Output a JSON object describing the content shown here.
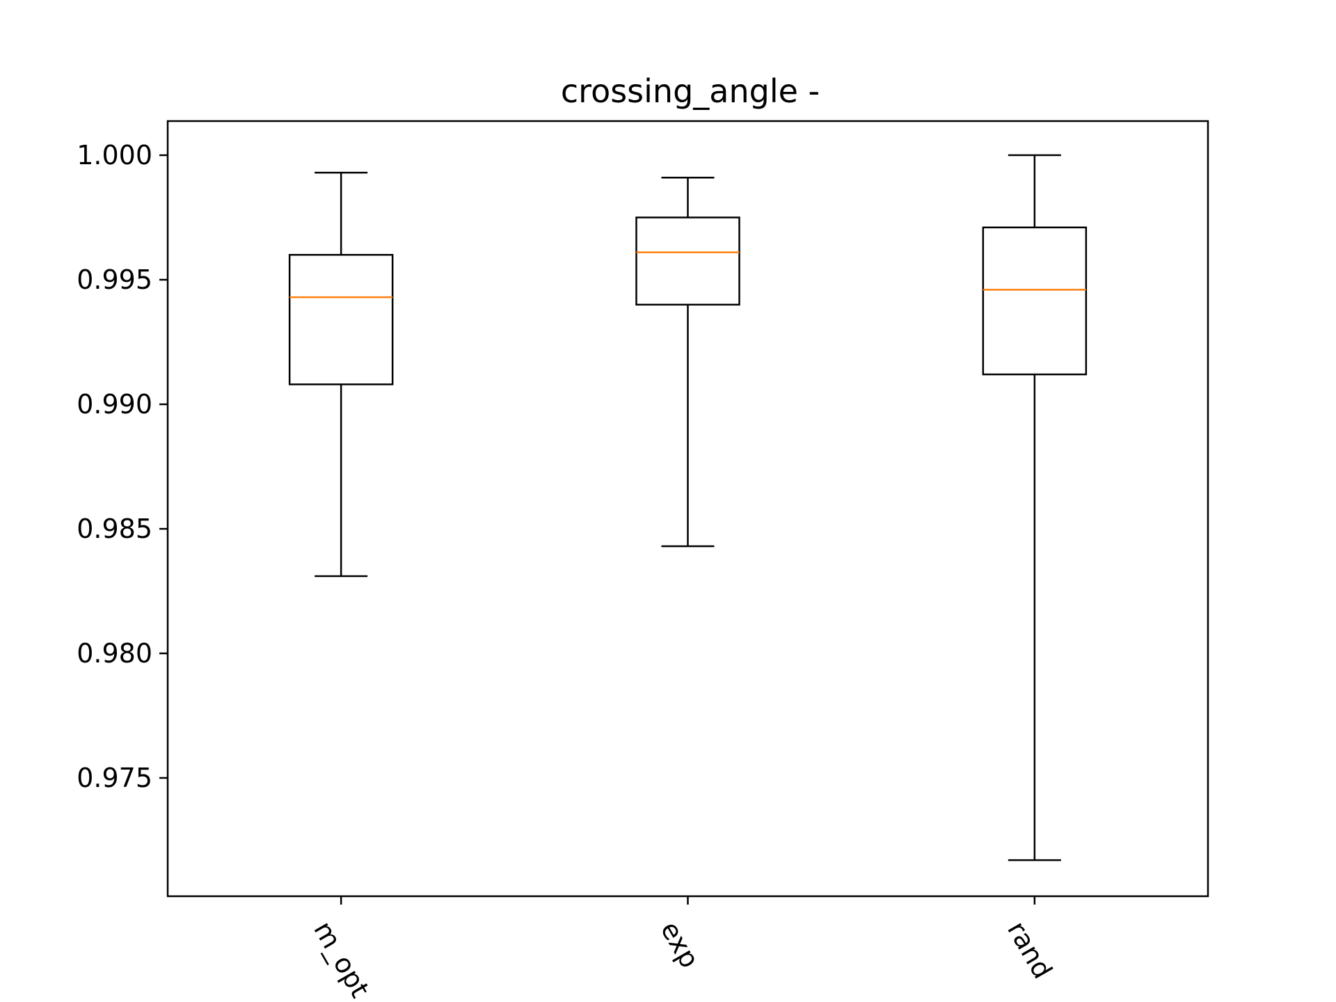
{
  "chart_data": {
    "type": "boxplot",
    "title": "crossing_angle -",
    "xlabel": "",
    "ylabel": "",
    "categories": [
      "m_opt",
      "exp",
      "rand"
    ],
    "boxes": [
      {
        "label": "m_opt",
        "whisker_low": 0.9831,
        "q1": 0.9908,
        "median": 0.9943,
        "q3": 0.996,
        "whisker_high": 0.9993
      },
      {
        "label": "exp",
        "whisker_low": 0.9843,
        "q1": 0.994,
        "median": 0.9961,
        "q3": 0.9975,
        "whisker_high": 0.9991
      },
      {
        "label": "rand",
        "whisker_low": 0.9717,
        "q1": 0.9912,
        "median": 0.9946,
        "q3": 0.9971,
        "whisker_high": 1.0
      }
    ],
    "yticks": [
      0.975,
      0.98,
      0.985,
      0.99,
      0.995,
      1.0
    ],
    "ytick_labels": [
      "0.975",
      "0.980",
      "0.985",
      "0.990",
      "0.995",
      "1.000"
    ],
    "ylim": [
      0.97025,
      1.00137
    ],
    "xtick_rotation_deg": -60,
    "grid": false,
    "colors": {
      "box": "#000000",
      "median": "#ff7f0e",
      "whisker": "#000000",
      "axes": "#000000",
      "background": "#ffffff"
    }
  }
}
